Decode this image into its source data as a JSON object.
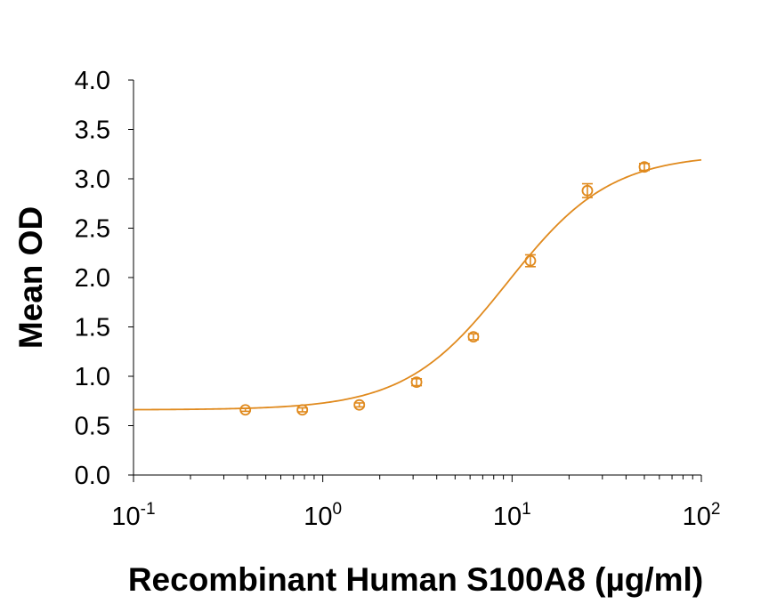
{
  "chart_data": {
    "type": "scatter",
    "title": "",
    "xlabel": "Recombinant Human S100A8 (µg/ml)",
    "ylabel": "Mean OD",
    "xscale": "log",
    "xlim": [
      0.1,
      100
    ],
    "ylim": [
      0,
      4.0
    ],
    "x_ticks": [
      0.1,
      1,
      10,
      100
    ],
    "x_tick_labels": [
      {
        "base": "10",
        "exp": "-1"
      },
      {
        "base": "10",
        "exp": "0"
      },
      {
        "base": "10",
        "exp": "1"
      },
      {
        "base": "10",
        "exp": "2"
      }
    ],
    "y_ticks": [
      0.0,
      0.5,
      1.0,
      1.5,
      2.0,
      2.5,
      3.0,
      3.5,
      4.0
    ],
    "y_tick_labels": [
      "0.0",
      "0.5",
      "1.0",
      "1.5",
      "2.0",
      "2.5",
      "3.0",
      "3.5",
      "4.0"
    ],
    "grid": false,
    "legend": "none",
    "color": "#E08A1E",
    "series": [
      {
        "x": [
          0.39,
          0.78,
          1.56,
          3.13,
          6.25,
          12.5,
          25,
          50
        ],
        "y": [
          0.66,
          0.66,
          0.71,
          0.94,
          1.4,
          2.17,
          2.88,
          3.12
        ],
        "error": [
          0.015,
          0.02,
          0.02,
          0.035,
          0.03,
          0.06,
          0.07,
          0.035
        ]
      }
    ],
    "fit_curve": {
      "model": "4PL",
      "bottom": 0.66,
      "top": 3.25,
      "ec50": 9.5,
      "hill": 1.6
    }
  }
}
